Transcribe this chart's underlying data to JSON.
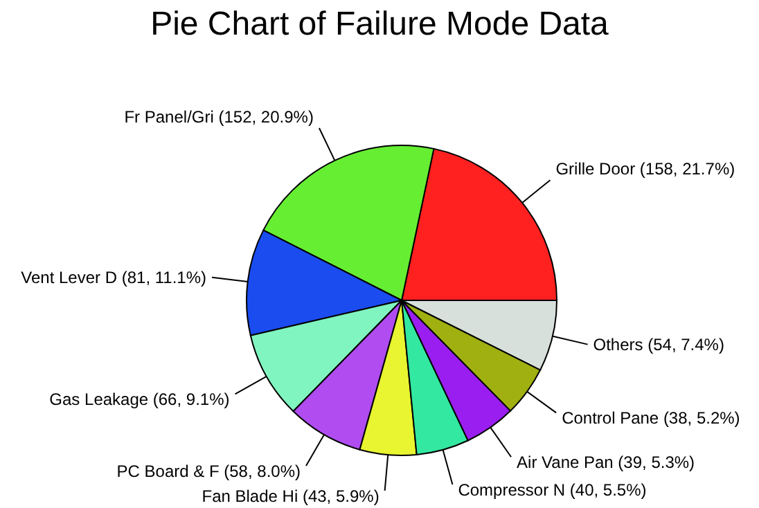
{
  "chart_data": {
    "type": "pie",
    "title": "Pie Chart of Failure Mode Data",
    "categories": [
      "Grille Door",
      "Fr Panel/Gri",
      "Vent Lever D",
      "Gas Leakage",
      "PC Board & F",
      "Fan Blade Hi",
      "Compressor N",
      "Air Vane Pan",
      "Control Pane",
      "Others"
    ],
    "values": [
      158,
      152,
      81,
      66,
      58,
      43,
      40,
      39,
      38,
      54
    ],
    "value_labels": [
      "(158, 21.7%)",
      "(152, 20.9%)",
      "(81, 11.1%)",
      "(66, 9.1%)",
      "(58, 8.0%)",
      "(43, 5.9%)",
      "(40, 5.5%)",
      "(39, 5.3%)",
      "(38, 5.2%)",
      "(54, 7.4%)"
    ],
    "colors": [
      "#ff2020",
      "#66ee33",
      "#1a4cf0",
      "#80f5c0",
      "#b04cf0",
      "#e8f530",
      "#33e8a0",
      "#9a1ef0",
      "#a0b010",
      "#d8e0dc"
    ]
  }
}
